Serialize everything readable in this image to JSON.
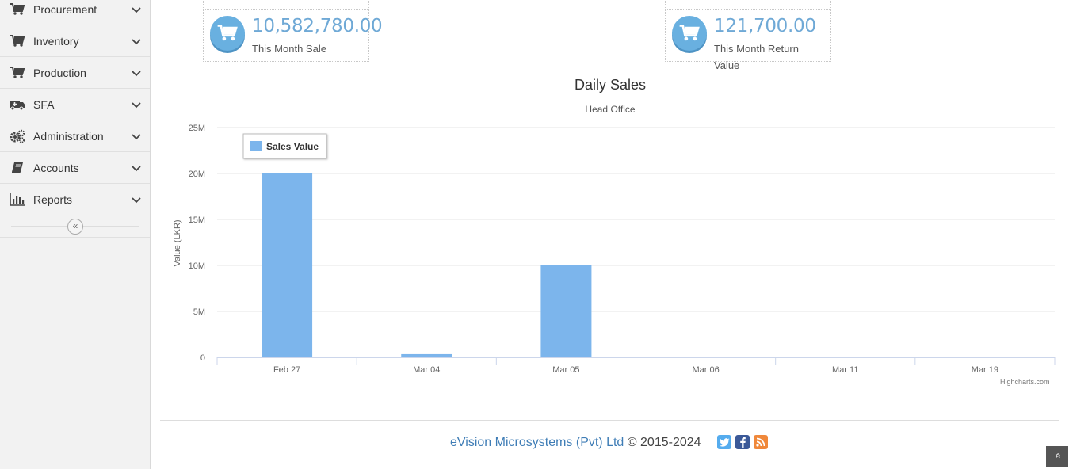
{
  "sidebar": {
    "items": [
      {
        "label": "Procurement",
        "icon": "cart-icon"
      },
      {
        "label": "Inventory",
        "icon": "cart-icon"
      },
      {
        "label": "Production",
        "icon": "cart-icon"
      },
      {
        "label": "SFA",
        "icon": "ambulance-icon"
      },
      {
        "label": "Administration",
        "icon": "gears-icon"
      },
      {
        "label": "Accounts",
        "icon": "book-icon"
      },
      {
        "label": "Reports",
        "icon": "bar-chart-icon"
      }
    ],
    "collapse_glyph": "«"
  },
  "stats": [
    {
      "value": "10,582,780.00",
      "label": "This Month Sale"
    },
    {
      "value": "121,700.00",
      "label": "This Month Return Value"
    }
  ],
  "chart_data": {
    "type": "bar",
    "title": "Daily Sales",
    "subtitle": "Head Office",
    "ylabel": "Value (LKR)",
    "xlabel": "",
    "categories": [
      "Feb 27",
      "Mar 04",
      "Mar 05",
      "Mar 06",
      "Mar 11",
      "Mar 19"
    ],
    "series": [
      {
        "name": "Sales Value",
        "values": [
          20000000,
          350000,
          10000000,
          0,
          0,
          0
        ],
        "color": "#7cb5ec"
      }
    ],
    "ylim": [
      0,
      25000000
    ],
    "yticks": [
      "0",
      "5M",
      "10M",
      "15M",
      "20M",
      "25M"
    ],
    "grid": true,
    "legend_position": "top-left",
    "credits": "Highcharts.com"
  },
  "footer": {
    "company": "eVision Microsystems (Pvt) Ltd",
    "copyright": "© 2015-2024"
  },
  "colors": {
    "accent": "#6fa9d6",
    "bar": "#7cb5ec",
    "twitter": "#55acee",
    "facebook": "#3b5998",
    "rss": "#f0883a"
  },
  "scroll_top_glyph": "»"
}
